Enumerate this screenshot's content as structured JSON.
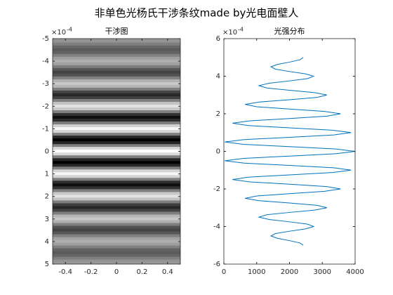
{
  "title": "非单色光杨氏干涉条纹made by光电面壁人",
  "chart_data": [
    {
      "type": "image",
      "title": "干涉图",
      "colormap": "gray",
      "xlim": [
        -0.5,
        0.5
      ],
      "xticks": [
        -0.4,
        -0.2,
        0,
        0.2,
        0.4
      ],
      "ylim": [
        -5,
        5
      ],
      "yticks": [
        -5,
        -4,
        -3,
        -2,
        -1,
        0,
        1,
        2,
        3,
        4,
        5
      ],
      "y_reversed": true,
      "y_exponent": {
        "base": "×10",
        "power": "-4"
      },
      "rows": [
        -5,
        -4.875,
        -4.75,
        -4.625,
        -4.5,
        -4.375,
        -4.25,
        -4.125,
        -4,
        -3.875,
        -3.75,
        -3.625,
        -3.5,
        -3.375,
        -3.25,
        -3.125,
        -3,
        -2.875,
        -2.75,
        -2.625,
        -2.5,
        -2.375,
        -2.25,
        -2.125,
        -2,
        -1.875,
        -1.75,
        -1.625,
        -1.5,
        -1.375,
        -1.25,
        -1.125,
        -1,
        -0.875,
        -0.75,
        -0.625,
        -0.5,
        -0.375,
        -0.25,
        -0.125,
        0,
        0.125,
        0.25,
        0.375,
        0.5,
        0.625,
        0.75,
        0.875,
        1,
        1.125,
        1.25,
        1.375,
        1.5,
        1.625,
        1.75,
        1.875,
        2,
        2.125,
        2.25,
        2.375,
        2.5,
        2.625,
        2.75,
        2.875,
        3,
        3.125,
        3.25,
        3.375,
        3.5,
        3.625,
        3.75,
        3.875,
        4,
        4.125,
        4.25,
        4.375,
        4.5,
        4.625,
        4.75,
        4.875,
        5
      ],
      "values": [
        2420,
        2320,
        2000,
        1628,
        1436,
        1573,
        2000,
        2488,
        2736,
        2553,
        2000,
        1378,
        1070,
        1306,
        2000,
        2768,
        3140,
        2844,
        2000,
        1081,
        646,
        1006,
        2000,
        3066,
        3558,
        3136,
        2000,
        801,
        262,
        743,
        2000,
        3307,
        3878,
        3348,
        2000,
        620,
        30,
        599,
        2000,
        3413,
        4000,
        3413,
        2000,
        599,
        30,
        620,
        2000,
        3348,
        3878,
        3307,
        2000,
        743,
        262,
        801,
        2000,
        3136,
        3558,
        3066,
        2000,
        1006,
        646,
        1081,
        2000,
        2844,
        3140,
        2768,
        2000,
        1306,
        1070,
        1378,
        2000,
        2553,
        2736,
        2488,
        2000,
        1573,
        1436,
        1628,
        2000,
        2320,
        2420
      ]
    },
    {
      "type": "line",
      "title": "光强分布",
      "xlim": [
        0,
        4000
      ],
      "xticks": [
        0,
        1000,
        2000,
        3000,
        4000
      ],
      "ylim": [
        -6,
        6
      ],
      "yticks": [
        -6,
        -4,
        -2,
        0,
        2,
        4,
        6
      ],
      "y_exponent": {
        "base": "×10",
        "power": "-4"
      },
      "series": [
        {
          "color": "#0072bd",
          "x": [
            2420,
            2320,
            2000,
            1628,
            1436,
            1573,
            2000,
            2488,
            2736,
            2553,
            2000,
            1378,
            1070,
            1306,
            2000,
            2768,
            3140,
            2844,
            2000,
            1081,
            646,
            1006,
            2000,
            3066,
            3558,
            3136,
            2000,
            801,
            262,
            743,
            2000,
            3307,
            3878,
            3348,
            2000,
            620,
            30,
            599,
            2000,
            3413,
            4000,
            3413,
            2000,
            599,
            30,
            620,
            2000,
            3348,
            3878,
            3307,
            2000,
            743,
            262,
            801,
            2000,
            3136,
            3558,
            3066,
            2000,
            1006,
            646,
            1081,
            2000,
            2844,
            3140,
            2768,
            2000,
            1306,
            1070,
            1378,
            2000,
            2553,
            2736,
            2488,
            2000,
            1573,
            1436,
            1628,
            2000,
            2320,
            2420
          ],
          "y": [
            -5,
            -4.875,
            -4.75,
            -4.625,
            -4.5,
            -4.375,
            -4.25,
            -4.125,
            -4,
            -3.875,
            -3.75,
            -3.625,
            -3.5,
            -3.375,
            -3.25,
            -3.125,
            -3,
            -2.875,
            -2.75,
            -2.625,
            -2.5,
            -2.375,
            -2.25,
            -2.125,
            -2,
            -1.875,
            -1.75,
            -1.625,
            -1.5,
            -1.375,
            -1.25,
            -1.125,
            -1,
            -0.875,
            -0.75,
            -0.625,
            -0.5,
            -0.375,
            -0.25,
            -0.125,
            0,
            0.125,
            0.25,
            0.375,
            0.5,
            0.625,
            0.75,
            0.875,
            1,
            1.125,
            1.25,
            1.375,
            1.5,
            1.625,
            1.75,
            1.875,
            2,
            2.125,
            2.25,
            2.375,
            2.5,
            2.625,
            2.75,
            2.875,
            3,
            3.125,
            3.25,
            3.375,
            3.5,
            3.625,
            3.75,
            3.875,
            4,
            4.125,
            4.25,
            4.375,
            4.5,
            4.625,
            4.75,
            4.875,
            5
          ]
        }
      ]
    }
  ]
}
